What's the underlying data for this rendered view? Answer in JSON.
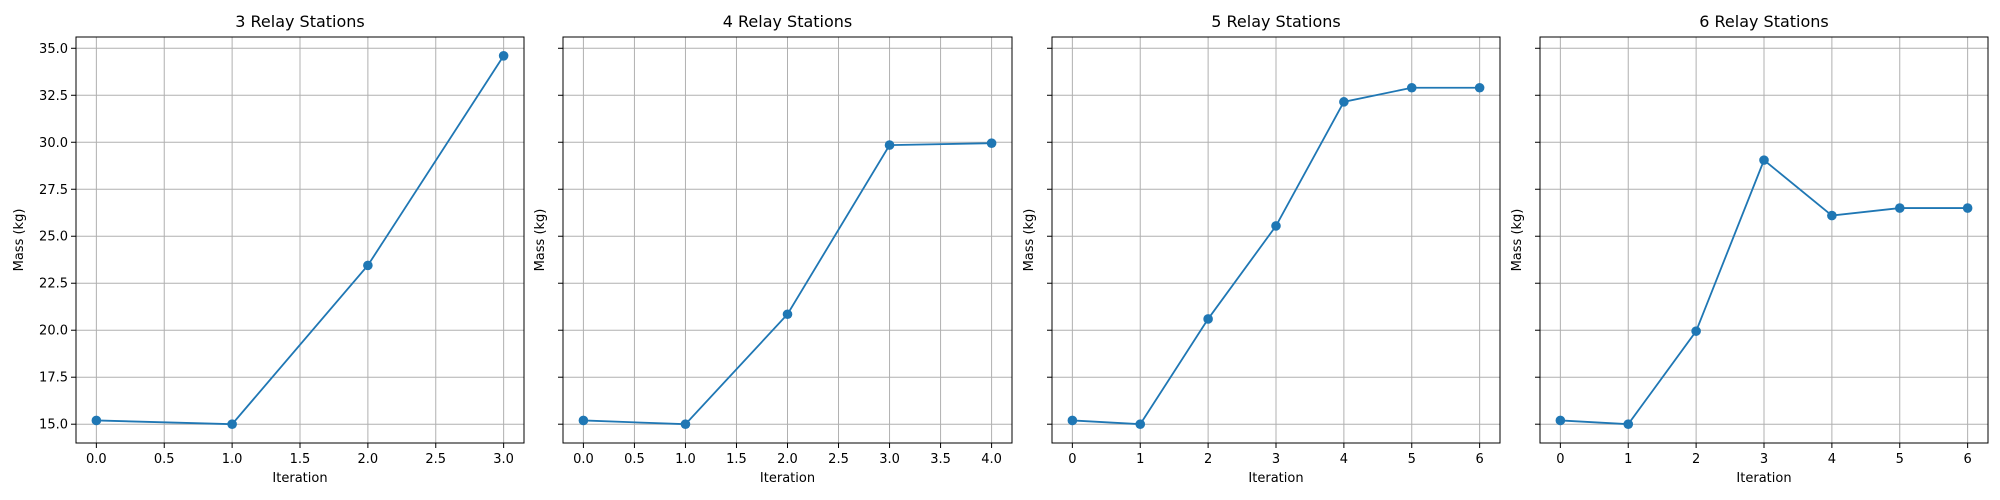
{
  "chart_data": [
    {
      "type": "line",
      "title": "3 Relay Stations",
      "xlabel": "Iteration",
      "ylabel": "Mass (kg)",
      "x": [
        0,
        1,
        2,
        3
      ],
      "y": [
        15.2,
        15.0,
        23.45,
        34.6
      ],
      "xticks": [
        0.0,
        0.5,
        1.0,
        1.5,
        2.0,
        2.5,
        3.0
      ],
      "xtick_labels": [
        "0.0",
        "0.5",
        "1.0",
        "1.5",
        "2.0",
        "2.5",
        "3.0"
      ],
      "xlim": [
        -0.15,
        3.15
      ],
      "ylim": [
        14.0,
        35.6
      ],
      "yticks": [
        15.0,
        17.5,
        20.0,
        22.5,
        25.0,
        27.5,
        30.0,
        32.5,
        35.0
      ],
      "ytick_labels": [
        "15.0",
        "17.5",
        "20.0",
        "22.5",
        "25.0",
        "27.5",
        "30.0",
        "32.5",
        "35.0"
      ],
      "show_ytick_labels": true,
      "grid": true,
      "marker": "circle",
      "color": "#1f77b4"
    },
    {
      "type": "line",
      "title": "4 Relay Stations",
      "xlabel": "Iteration",
      "ylabel": "Mass (kg)",
      "x": [
        0,
        1,
        2,
        3,
        4
      ],
      "y": [
        15.2,
        15.0,
        20.85,
        29.85,
        29.95
      ],
      "xticks": [
        0.0,
        0.5,
        1.0,
        1.5,
        2.0,
        2.5,
        3.0,
        3.5,
        4.0
      ],
      "xtick_labels": [
        "0.0",
        "0.5",
        "1.0",
        "1.5",
        "2.0",
        "2.5",
        "3.0",
        "3.5",
        "4.0"
      ],
      "xlim": [
        -0.2,
        4.2
      ],
      "ylim": [
        14.0,
        35.6
      ],
      "yticks": [
        15.0,
        17.5,
        20.0,
        22.5,
        25.0,
        27.5,
        30.0,
        32.5,
        35.0
      ],
      "show_ytick_labels": false,
      "grid": true,
      "marker": "circle",
      "color": "#1f77b4"
    },
    {
      "type": "line",
      "title": "5 Relay Stations",
      "xlabel": "Iteration",
      "ylabel": "Mass (kg)",
      "x": [
        0,
        1,
        2,
        3,
        4,
        5,
        6
      ],
      "y": [
        15.2,
        15.0,
        20.6,
        25.55,
        32.15,
        32.9,
        32.9
      ],
      "xticks": [
        0,
        1,
        2,
        3,
        4,
        5,
        6
      ],
      "xtick_labels": [
        "0",
        "1",
        "2",
        "3",
        "4",
        "5",
        "6"
      ],
      "xlim": [
        -0.3,
        6.3
      ],
      "ylim": [
        14.0,
        35.6
      ],
      "yticks": [
        15.0,
        17.5,
        20.0,
        22.5,
        25.0,
        27.5,
        30.0,
        32.5,
        35.0
      ],
      "show_ytick_labels": false,
      "grid": true,
      "marker": "circle",
      "color": "#1f77b4"
    },
    {
      "type": "line",
      "title": "6 Relay Stations",
      "xlabel": "Iteration",
      "ylabel": "Mass (kg)",
      "x": [
        0,
        1,
        2,
        3,
        4,
        5,
        6
      ],
      "y": [
        15.2,
        15.0,
        19.95,
        29.05,
        26.1,
        26.5,
        26.5
      ],
      "xticks": [
        0,
        1,
        2,
        3,
        4,
        5,
        6
      ],
      "xtick_labels": [
        "0",
        "1",
        "2",
        "3",
        "4",
        "5",
        "6"
      ],
      "xlim": [
        -0.3,
        6.3
      ],
      "ylim": [
        14.0,
        35.6
      ],
      "yticks": [
        15.0,
        17.5,
        20.0,
        22.5,
        25.0,
        27.5,
        30.0,
        32.5,
        35.0
      ],
      "show_ytick_labels": false,
      "grid": true,
      "marker": "circle",
      "color": "#1f77b4"
    }
  ]
}
